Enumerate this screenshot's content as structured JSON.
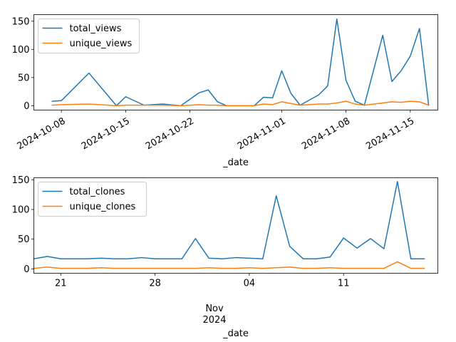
{
  "chart_data": [
    {
      "type": "line",
      "xlabel": "_date",
      "ylabel": "",
      "ylim": [
        -7.7,
        161.7
      ],
      "xlim": [
        "2024-10-05T00:00",
        "2024-11-18T00:00"
      ],
      "yticks": [
        0,
        50,
        100,
        150
      ],
      "xticks": [
        {
          "date": "2024-10-08",
          "label": "2024-10-08"
        },
        {
          "date": "2024-10-15",
          "label": "2024-10-15"
        },
        {
          "date": "2024-10-22",
          "label": "2024-10-22"
        },
        {
          "date": "2024-11-01",
          "label": "2024-11-01"
        },
        {
          "date": "2024-11-08",
          "label": "2024-11-08"
        },
        {
          "date": "2024-11-15",
          "label": "2024-11-15"
        }
      ],
      "x_tick_rotation": 30,
      "legend_position": "upper left",
      "grid": false,
      "series": [
        {
          "name": "total_views",
          "color": "#1f77b4",
          "points": [
            {
              "x": "2024-10-07",
              "y": 8
            },
            {
              "x": "2024-10-08",
              "y": 9
            },
            {
              "x": "2024-10-11",
              "y": 58
            },
            {
              "x": "2024-10-14",
              "y": 0
            },
            {
              "x": "2024-10-15",
              "y": 16
            },
            {
              "x": "2024-10-17",
              "y": 1
            },
            {
              "x": "2024-10-19",
              "y": 3
            },
            {
              "x": "2024-10-21",
              "y": 0
            },
            {
              "x": "2024-10-23",
              "y": 23
            },
            {
              "x": "2024-10-24",
              "y": 28
            },
            {
              "x": "2024-10-25",
              "y": 7
            },
            {
              "x": "2024-10-26",
              "y": 0
            },
            {
              "x": "2024-10-27",
              "y": 0
            },
            {
              "x": "2024-10-28",
              "y": 0
            },
            {
              "x": "2024-10-29",
              "y": 0
            },
            {
              "x": "2024-10-30",
              "y": 15
            },
            {
              "x": "2024-10-31",
              "y": 14
            },
            {
              "x": "2024-11-01",
              "y": 62
            },
            {
              "x": "2024-11-02",
              "y": 22
            },
            {
              "x": "2024-11-03",
              "y": 1
            },
            {
              "x": "2024-11-05",
              "y": 19
            },
            {
              "x": "2024-11-06",
              "y": 35
            },
            {
              "x": "2024-11-07",
              "y": 154
            },
            {
              "x": "2024-11-08",
              "y": 45
            },
            {
              "x": "2024-11-09",
              "y": 8
            },
            {
              "x": "2024-11-10",
              "y": 1
            },
            {
              "x": "2024-11-12",
              "y": 125
            },
            {
              "x": "2024-11-13",
              "y": 43
            },
            {
              "x": "2024-11-14",
              "y": 62
            },
            {
              "x": "2024-11-15",
              "y": 88
            },
            {
              "x": "2024-11-16",
              "y": 137
            },
            {
              "x": "2024-11-17",
              "y": 1
            }
          ]
        },
        {
          "name": "unique_views",
          "color": "#ff7f0e",
          "points": [
            {
              "x": "2024-10-07",
              "y": 1
            },
            {
              "x": "2024-10-08",
              "y": 2
            },
            {
              "x": "2024-10-11",
              "y": 3
            },
            {
              "x": "2024-10-14",
              "y": 0
            },
            {
              "x": "2024-10-15",
              "y": 1
            },
            {
              "x": "2024-10-17",
              "y": 1
            },
            {
              "x": "2024-10-19",
              "y": 1
            },
            {
              "x": "2024-10-21",
              "y": 0
            },
            {
              "x": "2024-10-23",
              "y": 2
            },
            {
              "x": "2024-10-24",
              "y": 1
            },
            {
              "x": "2024-10-25",
              "y": 1
            },
            {
              "x": "2024-10-26",
              "y": 0
            },
            {
              "x": "2024-10-27",
              "y": 0
            },
            {
              "x": "2024-10-28",
              "y": 0
            },
            {
              "x": "2024-10-29",
              "y": 0
            },
            {
              "x": "2024-10-30",
              "y": 3
            },
            {
              "x": "2024-10-31",
              "y": 2
            },
            {
              "x": "2024-11-01",
              "y": 7
            },
            {
              "x": "2024-11-02",
              "y": 4
            },
            {
              "x": "2024-11-03",
              "y": 1
            },
            {
              "x": "2024-11-05",
              "y": 3
            },
            {
              "x": "2024-11-06",
              "y": 3
            },
            {
              "x": "2024-11-07",
              "y": 5
            },
            {
              "x": "2024-11-08",
              "y": 8
            },
            {
              "x": "2024-11-09",
              "y": 3
            },
            {
              "x": "2024-11-10",
              "y": 1
            },
            {
              "x": "2024-11-12",
              "y": 5
            },
            {
              "x": "2024-11-13",
              "y": 7
            },
            {
              "x": "2024-11-14",
              "y": 6
            },
            {
              "x": "2024-11-15",
              "y": 8
            },
            {
              "x": "2024-11-16",
              "y": 7
            },
            {
              "x": "2024-11-17",
              "y": 1
            }
          ]
        }
      ]
    },
    {
      "type": "line",
      "xlabel": "_date",
      "ylabel": "",
      "ylim": [
        -7.3,
        153.3
      ],
      "xlim": [
        "2024-10-19T00:00",
        "2024-11-18T00:00"
      ],
      "yticks": [
        0,
        50,
        100,
        150
      ],
      "xticks": [
        {
          "date": "2024-10-21",
          "label": "21"
        },
        {
          "date": "2024-10-28",
          "label": "28"
        },
        {
          "date": "2024-11-04",
          "label": "04"
        },
        {
          "date": "2024-11-11",
          "label": "11"
        }
      ],
      "x_secondary_label": {
        "date": "2024-11-01",
        "line1": "Nov",
        "line2": "2024"
      },
      "legend_position": "upper left",
      "grid": false,
      "series": [
        {
          "name": "total_clones",
          "color": "#1f77b4",
          "points": [
            {
              "x": "2024-10-19",
              "y": 17
            },
            {
              "x": "2024-10-20",
              "y": 21
            },
            {
              "x": "2024-10-21",
              "y": 17
            },
            {
              "x": "2024-10-22",
              "y": 17
            },
            {
              "x": "2024-10-23",
              "y": 17
            },
            {
              "x": "2024-10-24",
              "y": 18
            },
            {
              "x": "2024-10-25",
              "y": 17
            },
            {
              "x": "2024-10-26",
              "y": 17
            },
            {
              "x": "2024-10-27",
              "y": 19
            },
            {
              "x": "2024-10-28",
              "y": 17
            },
            {
              "x": "2024-10-29",
              "y": 17
            },
            {
              "x": "2024-10-30",
              "y": 17
            },
            {
              "x": "2024-10-31",
              "y": 51
            },
            {
              "x": "2024-11-01",
              "y": 18
            },
            {
              "x": "2024-11-02",
              "y": 17
            },
            {
              "x": "2024-11-03",
              "y": 19
            },
            {
              "x": "2024-11-04",
              "y": 18
            },
            {
              "x": "2024-11-05",
              "y": 17
            },
            {
              "x": "2024-11-06",
              "y": 123
            },
            {
              "x": "2024-11-07",
              "y": 38
            },
            {
              "x": "2024-11-08",
              "y": 17
            },
            {
              "x": "2024-11-09",
              "y": 17
            },
            {
              "x": "2024-11-10",
              "y": 20
            },
            {
              "x": "2024-11-11",
              "y": 52
            },
            {
              "x": "2024-11-12",
              "y": 35
            },
            {
              "x": "2024-11-13",
              "y": 51
            },
            {
              "x": "2024-11-14",
              "y": 34
            },
            {
              "x": "2024-11-15",
              "y": 147
            },
            {
              "x": "2024-11-16",
              "y": 17
            },
            {
              "x": "2024-11-17",
              "y": 17
            }
          ]
        },
        {
          "name": "unique_clones",
          "color": "#ff7f0e",
          "points": [
            {
              "x": "2024-10-19",
              "y": 1
            },
            {
              "x": "2024-10-20",
              "y": 3
            },
            {
              "x": "2024-10-21",
              "y": 1
            },
            {
              "x": "2024-10-22",
              "y": 1
            },
            {
              "x": "2024-10-23",
              "y": 1
            },
            {
              "x": "2024-10-24",
              "y": 2
            },
            {
              "x": "2024-10-25",
              "y": 1
            },
            {
              "x": "2024-10-26",
              "y": 1
            },
            {
              "x": "2024-10-27",
              "y": 1
            },
            {
              "x": "2024-10-28",
              "y": 1
            },
            {
              "x": "2024-10-29",
              "y": 1
            },
            {
              "x": "2024-10-30",
              "y": 1
            },
            {
              "x": "2024-10-31",
              "y": 1
            },
            {
              "x": "2024-11-01",
              "y": 2
            },
            {
              "x": "2024-11-02",
              "y": 1
            },
            {
              "x": "2024-11-03",
              "y": 1
            },
            {
              "x": "2024-11-04",
              "y": 2
            },
            {
              "x": "2024-11-05",
              "y": 1
            },
            {
              "x": "2024-11-06",
              "y": 2
            },
            {
              "x": "2024-11-07",
              "y": 3
            },
            {
              "x": "2024-11-08",
              "y": 1
            },
            {
              "x": "2024-11-09",
              "y": 1
            },
            {
              "x": "2024-11-10",
              "y": 2
            },
            {
              "x": "2024-11-11",
              "y": 1
            },
            {
              "x": "2024-11-12",
              "y": 1
            },
            {
              "x": "2024-11-13",
              "y": 1
            },
            {
              "x": "2024-11-14",
              "y": 1
            },
            {
              "x": "2024-11-15",
              "y": 12
            },
            {
              "x": "2024-11-16",
              "y": 1
            },
            {
              "x": "2024-11-17",
              "y": 1
            }
          ]
        }
      ]
    }
  ]
}
